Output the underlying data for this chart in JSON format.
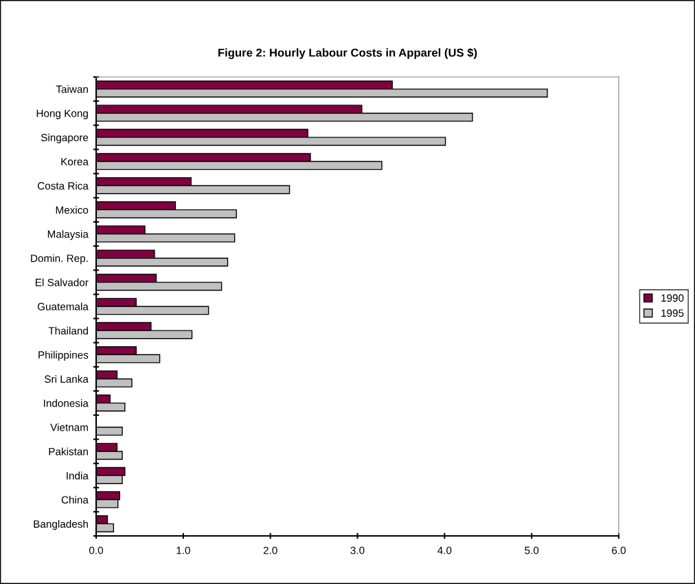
{
  "chart_data": {
    "type": "bar",
    "orientation": "horizontal",
    "title": "Figure 2: Hourly Labour Costs in Apparel (US $)",
    "categories": [
      "Taiwan",
      "Hong Kong",
      "Singapore",
      "Korea",
      "Costa Rica",
      "Mexico",
      "Malaysia",
      "Domin. Rep.",
      "El Salvador",
      "Guatemala",
      "Thailand",
      "Philippines",
      "Sri Lanka",
      "Indonesia",
      "Vietnam",
      "Pakistan",
      "India",
      "China",
      "Bangladesh"
    ],
    "series": [
      {
        "name": "1990",
        "color": "#800040",
        "values": [
          3.4,
          3.05,
          2.43,
          2.46,
          1.09,
          0.91,
          0.56,
          0.67,
          0.69,
          0.46,
          0.63,
          0.46,
          0.24,
          0.16,
          null,
          0.24,
          0.33,
          0.27,
          0.13
        ]
      },
      {
        "name": "1995",
        "color": "#c0c0c0",
        "values": [
          5.18,
          4.32,
          4.01,
          3.28,
          2.22,
          1.61,
          1.59,
          1.51,
          1.44,
          1.29,
          1.1,
          0.73,
          0.41,
          0.33,
          0.3,
          0.3,
          0.3,
          0.25,
          0.2
        ]
      }
    ],
    "xlim": [
      0,
      6
    ],
    "xticks": [
      {
        "value": 0,
        "label": "0.0"
      },
      {
        "value": 1,
        "label": "1.0"
      },
      {
        "value": 2,
        "label": "2.0"
      },
      {
        "value": 3,
        "label": "3.0"
      },
      {
        "value": 4,
        "label": "4.0"
      },
      {
        "value": 5,
        "label": "5.0"
      },
      {
        "value": 6,
        "label": "6.0"
      }
    ],
    "legend": "right",
    "grid": false
  }
}
